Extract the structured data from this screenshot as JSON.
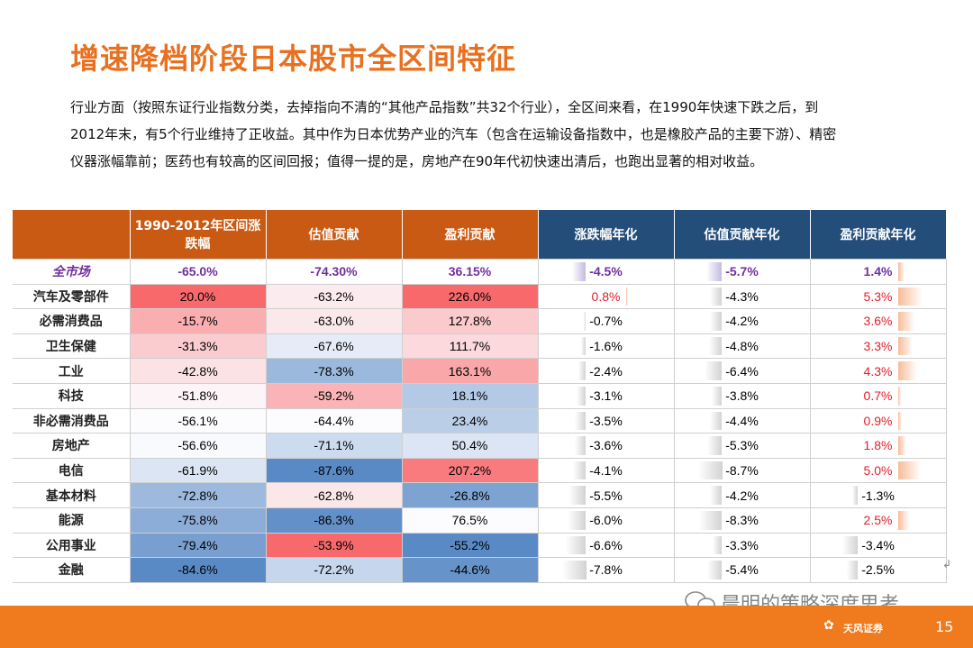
{
  "title": "增速降档阶段日本股市全区间特征",
  "paragraph": [
    "行业方面（按照东证行业指数分类，去掉指向不清的“其他产品指数”共32个行业），全区间来看，在1990年快速下跌之后，到",
    "2012年末，有5个行业维持了正收益。其中作为日本优势产业的汽车（包含在运输设备指数中，也是橡胶产品的主要下游）、精密",
    "仪器涨幅靠前；医药也有较高的区间回报；值得一提的是，房地产在90年代初快速出清后，也跑出显著的相对收益。"
  ],
  "table": {
    "headers": [
      "",
      "1990-2012年区间涨跌幅",
      "估值贡献",
      "盈利贡献",
      "涨跌幅年化",
      "估值贡献年化",
      "盈利贡献年化"
    ],
    "rows": [
      {
        "name": "全市场",
        "cells": [
          "-65.0%",
          "-74.30%",
          "36.15%",
          "-4.5%",
          "-5.7%",
          "1.4%"
        ]
      },
      {
        "name": "汽车及零部件",
        "cells": [
          "20.0%",
          "-63.2%",
          "226.0%",
          "0.8%",
          "-4.3%",
          "5.3%"
        ]
      },
      {
        "name": "必需消费品",
        "cells": [
          "-15.7%",
          "-63.0%",
          "127.8%",
          "-0.7%",
          "-4.2%",
          "3.6%"
        ]
      },
      {
        "name": "卫生保健",
        "cells": [
          "-31.3%",
          "-67.6%",
          "111.7%",
          "-1.6%",
          "-4.8%",
          "3.3%"
        ]
      },
      {
        "name": "工业",
        "cells": [
          "-42.8%",
          "-78.3%",
          "163.1%",
          "-2.4%",
          "-6.4%",
          "4.3%"
        ]
      },
      {
        "name": "科技",
        "cells": [
          "-51.8%",
          "-59.2%",
          "18.1%",
          "-3.1%",
          "-3.8%",
          "0.7%"
        ]
      },
      {
        "name": "非必需消费品",
        "cells": [
          "-56.1%",
          "-64.4%",
          "23.4%",
          "-3.5%",
          "-4.4%",
          "0.9%"
        ]
      },
      {
        "name": "房地产",
        "cells": [
          "-56.6%",
          "-71.1%",
          "50.4%",
          "-3.6%",
          "-5.3%",
          "1.8%"
        ]
      },
      {
        "name": "电信",
        "cells": [
          "-61.9%",
          "-87.6%",
          "207.2%",
          "-4.1%",
          "-8.7%",
          "5.0%"
        ]
      },
      {
        "name": "基本材料",
        "cells": [
          "-72.8%",
          "-62.8%",
          "-26.8%",
          "-5.5%",
          "-4.2%",
          "-1.3%"
        ]
      },
      {
        "name": "能源",
        "cells": [
          "-75.8%",
          "-86.3%",
          "76.5%",
          "-6.0%",
          "-8.3%",
          "2.5%"
        ]
      },
      {
        "name": "公用事业",
        "cells": [
          "-79.4%",
          "-53.9%",
          "-55.2%",
          "-6.6%",
          "-3.3%",
          "-3.4%"
        ]
      },
      {
        "name": "金融",
        "cells": [
          "-84.6%",
          "-72.2%",
          "-44.6%",
          "-7.8%",
          "-5.4%",
          "-2.5%"
        ]
      }
    ]
  },
  "colors": {
    "title": "#e8701f",
    "header_orange": "#c85a13",
    "header_blue": "#244e7a",
    "heat_red": "#f8696b",
    "heat_white": "#fcfcff",
    "heat_blue": "#5a8ac6",
    "market_text": "#7030a0",
    "positive_text": "#e0202a",
    "footer": "#f07a1e"
  },
  "watermark": "晨明的策略深度思考",
  "logo": {
    "name": "天风证券",
    "mark": "✿"
  },
  "page_number": "15"
}
